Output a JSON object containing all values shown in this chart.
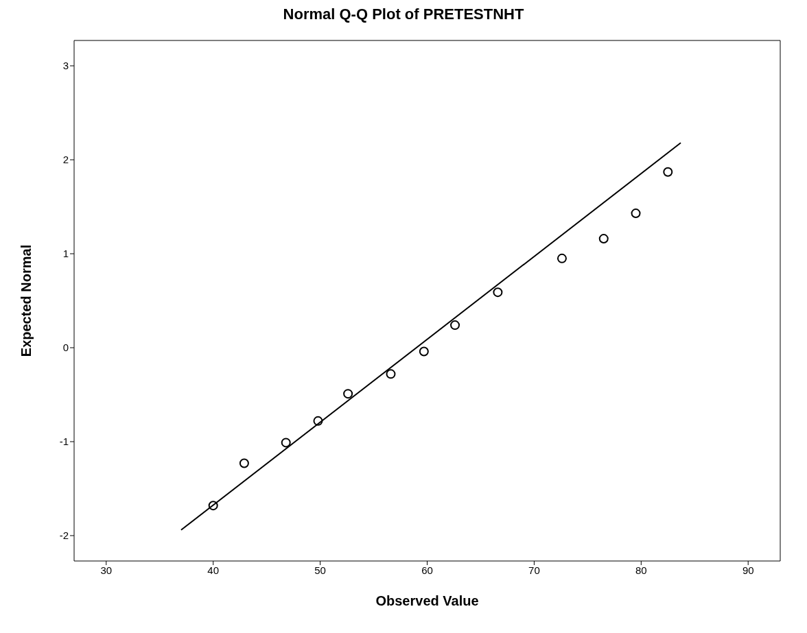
{
  "chart_data": {
    "type": "scatter",
    "title": "Normal Q-Q Plot of PRETESTNHT",
    "xlabel": "Observed Value",
    "ylabel": "Expected Normal",
    "xlim": [
      27,
      93
    ],
    "xticks": [
      30,
      40,
      50,
      60,
      70,
      80,
      90
    ],
    "ylim": [
      -2.27,
      3.27
    ],
    "yticks": [
      -2,
      -1,
      0,
      1,
      2,
      3
    ],
    "grid": false,
    "legend": false,
    "series": [
      {
        "color": "#000000",
        "marker": "circle",
        "x": [
          40,
          42.9,
          46.8,
          49.8,
          52.6,
          56.6,
          59.7,
          62.6,
          66.6,
          72.6,
          76.5,
          79.5,
          82.5
        ],
        "values": [
          -1.68,
          -1.23,
          -1.01,
          -0.78,
          -0.49,
          -0.28,
          -0.04,
          0.24,
          0.59,
          0.95,
          1.16,
          1.43,
          1.87
        ]
      },
      {
        "type": "line",
        "color": "#000000",
        "marker": "none",
        "line_style": "solid",
        "x": [
          37,
          83.7
        ],
        "values": [
          -1.94,
          2.18
        ]
      }
    ]
  }
}
